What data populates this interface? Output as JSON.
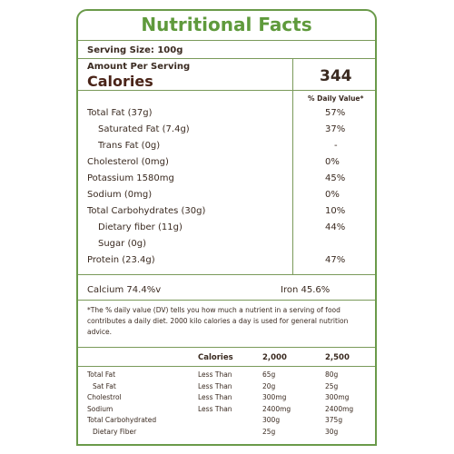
{
  "title": "Nutritional Facts",
  "serving_size": "Serving Size: 100g",
  "amount_per_serving": "Amount Per Serving",
  "calories_label": "Calories",
  "calories_value": "344",
  "daily_value_header": "% Daily Value*",
  "nutrients": [
    {
      "label": "Total Fat (37g)",
      "value": "57%",
      "indent": false
    },
    {
      "label": "Saturated Fat (7.4g)",
      "value": "37%",
      "indent": true
    },
    {
      "label": "Trans Fat (0g)",
      "value": "-",
      "indent": true
    },
    {
      "label": "Cholesterol (0mg)",
      "value": "0%",
      "indent": false
    },
    {
      "label": "Potassium 1580mg",
      "value": "45%",
      "indent": false
    },
    {
      "label": "Sodium (0mg)",
      "value": "0%",
      "indent": false
    },
    {
      "label": "Total Carbohydrates (30g)",
      "value": "10%",
      "indent": false
    },
    {
      "label": "Dietary fiber (11g)",
      "value": "44%",
      "indent": true
    },
    {
      "label": "Sugar (0g)",
      "value": "",
      "indent": true
    },
    {
      "label": "Protein (23.4g)",
      "value": "47%",
      "indent": false
    }
  ],
  "calcium": "Calcium 74.4%v",
  "iron": "Iron 45.6%",
  "footnote": "*The % daily value (DV) tells you how much a nutrient in a serving of food contributes a daily diet. 2000 kilo calories a day is used for general nutrition advice.",
  "table": {
    "headers": [
      "",
      "Calories",
      "2,000",
      "2,500"
    ],
    "rows": [
      [
        "Total Fat",
        "Less Than",
        "65g",
        "80g"
      ],
      [
        "Sat Fat",
        "Less Than",
        "20g",
        "25g"
      ],
      [
        "Cholestrol",
        "Less Than",
        "300mg",
        "300mg"
      ],
      [
        "Sodium",
        "Less Than",
        "2400mg",
        "2400mg"
      ],
      [
        "Total Carbohydrated",
        "",
        "300g",
        "375g"
      ],
      [
        "Dietary Fiber",
        "",
        "25g",
        "30g"
      ]
    ]
  },
  "colors": {
    "accent_green": "#5f9a3c",
    "text_brown": "#3a2a20",
    "calories_brown": "#4a2418",
    "border_green": "#6a9a4a"
  }
}
